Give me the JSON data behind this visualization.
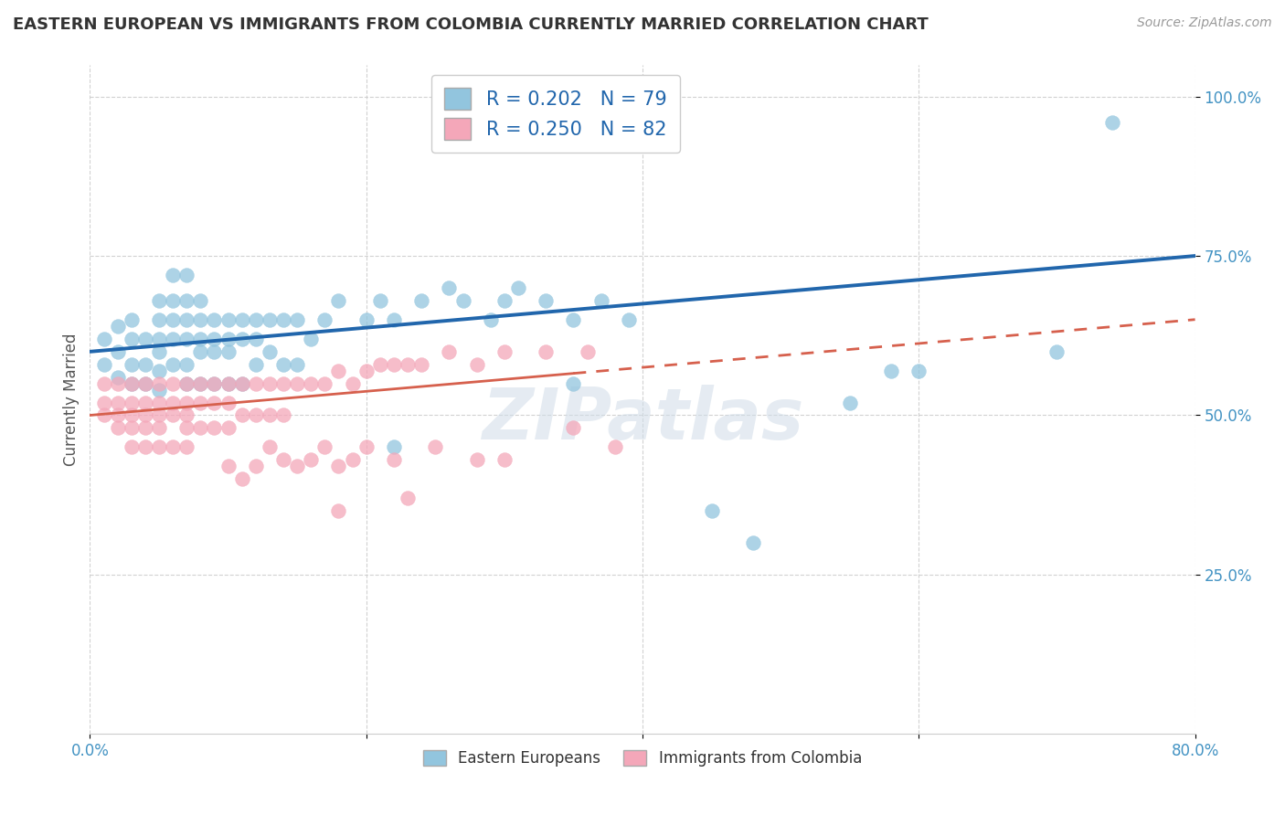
{
  "title": "EASTERN EUROPEAN VS IMMIGRANTS FROM COLOMBIA CURRENTLY MARRIED CORRELATION CHART",
  "source": "Source: ZipAtlas.com",
  "ylabel": "Currently Married",
  "watermark": "ZIPatlas",
  "xlim": [
    0.0,
    0.8
  ],
  "ylim": [
    0.0,
    1.05
  ],
  "series1_label": "Eastern Europeans",
  "series2_label": "Immigrants from Colombia",
  "series1_R": "0.202",
  "series1_N": "79",
  "series2_R": "0.250",
  "series2_N": "82",
  "series1_color": "#92c5de",
  "series2_color": "#f4a7b9",
  "series1_line_color": "#2166ac",
  "series2_line_color": "#d6604d",
  "background_color": "#ffffff",
  "title_fontsize": 13,
  "legend_fontsize": 15,
  "axis_label_fontsize": 12,
  "tick_fontsize": 12,
  "series1_x": [
    0.01,
    0.01,
    0.02,
    0.02,
    0.02,
    0.03,
    0.03,
    0.03,
    0.03,
    0.04,
    0.04,
    0.04,
    0.05,
    0.05,
    0.05,
    0.05,
    0.05,
    0.05,
    0.06,
    0.06,
    0.06,
    0.06,
    0.06,
    0.07,
    0.07,
    0.07,
    0.07,
    0.07,
    0.07,
    0.08,
    0.08,
    0.08,
    0.08,
    0.08,
    0.09,
    0.09,
    0.09,
    0.09,
    0.1,
    0.1,
    0.1,
    0.1,
    0.11,
    0.11,
    0.11,
    0.12,
    0.12,
    0.12,
    0.13,
    0.13,
    0.14,
    0.14,
    0.15,
    0.15,
    0.16,
    0.17,
    0.18,
    0.2,
    0.21,
    0.22,
    0.24,
    0.26,
    0.27,
    0.29,
    0.3,
    0.31,
    0.33,
    0.35,
    0.37,
    0.39,
    0.22,
    0.35,
    0.6,
    0.55,
    0.58,
    0.7,
    0.45,
    0.48,
    0.74
  ],
  "series1_y": [
    0.62,
    0.58,
    0.64,
    0.6,
    0.56,
    0.65,
    0.62,
    0.58,
    0.55,
    0.62,
    0.58,
    0.55,
    0.68,
    0.65,
    0.62,
    0.6,
    0.57,
    0.54,
    0.72,
    0.68,
    0.65,
    0.62,
    0.58,
    0.72,
    0.68,
    0.65,
    0.62,
    0.58,
    0.55,
    0.68,
    0.65,
    0.62,
    0.6,
    0.55,
    0.65,
    0.62,
    0.6,
    0.55,
    0.65,
    0.62,
    0.6,
    0.55,
    0.65,
    0.62,
    0.55,
    0.65,
    0.62,
    0.58,
    0.65,
    0.6,
    0.65,
    0.58,
    0.65,
    0.58,
    0.62,
    0.65,
    0.68,
    0.65,
    0.68,
    0.65,
    0.68,
    0.7,
    0.68,
    0.65,
    0.68,
    0.7,
    0.68,
    0.65,
    0.68,
    0.65,
    0.45,
    0.55,
    0.57,
    0.52,
    0.57,
    0.6,
    0.35,
    0.3,
    0.96
  ],
  "series2_x": [
    0.01,
    0.01,
    0.01,
    0.02,
    0.02,
    0.02,
    0.02,
    0.03,
    0.03,
    0.03,
    0.03,
    0.03,
    0.04,
    0.04,
    0.04,
    0.04,
    0.04,
    0.05,
    0.05,
    0.05,
    0.05,
    0.05,
    0.06,
    0.06,
    0.06,
    0.06,
    0.07,
    0.07,
    0.07,
    0.07,
    0.07,
    0.08,
    0.08,
    0.08,
    0.09,
    0.09,
    0.09,
    0.1,
    0.1,
    0.1,
    0.11,
    0.11,
    0.12,
    0.12,
    0.13,
    0.13,
    0.14,
    0.14,
    0.15,
    0.16,
    0.17,
    0.18,
    0.19,
    0.2,
    0.21,
    0.22,
    0.23,
    0.24,
    0.26,
    0.28,
    0.3,
    0.33,
    0.36,
    0.1,
    0.11,
    0.12,
    0.13,
    0.14,
    0.15,
    0.16,
    0.17,
    0.18,
    0.19,
    0.2,
    0.22,
    0.25,
    0.28,
    0.3,
    0.18,
    0.23,
    0.35,
    0.38
  ],
  "series2_y": [
    0.55,
    0.52,
    0.5,
    0.55,
    0.52,
    0.5,
    0.48,
    0.55,
    0.52,
    0.5,
    0.48,
    0.45,
    0.55,
    0.52,
    0.5,
    0.48,
    0.45,
    0.55,
    0.52,
    0.5,
    0.48,
    0.45,
    0.55,
    0.52,
    0.5,
    0.45,
    0.55,
    0.52,
    0.5,
    0.48,
    0.45,
    0.55,
    0.52,
    0.48,
    0.55,
    0.52,
    0.48,
    0.55,
    0.52,
    0.48,
    0.55,
    0.5,
    0.55,
    0.5,
    0.55,
    0.5,
    0.55,
    0.5,
    0.55,
    0.55,
    0.55,
    0.57,
    0.55,
    0.57,
    0.58,
    0.58,
    0.58,
    0.58,
    0.6,
    0.58,
    0.6,
    0.6,
    0.6,
    0.42,
    0.4,
    0.42,
    0.45,
    0.43,
    0.42,
    0.43,
    0.45,
    0.42,
    0.43,
    0.45,
    0.43,
    0.45,
    0.43,
    0.43,
    0.35,
    0.37,
    0.48,
    0.45
  ]
}
